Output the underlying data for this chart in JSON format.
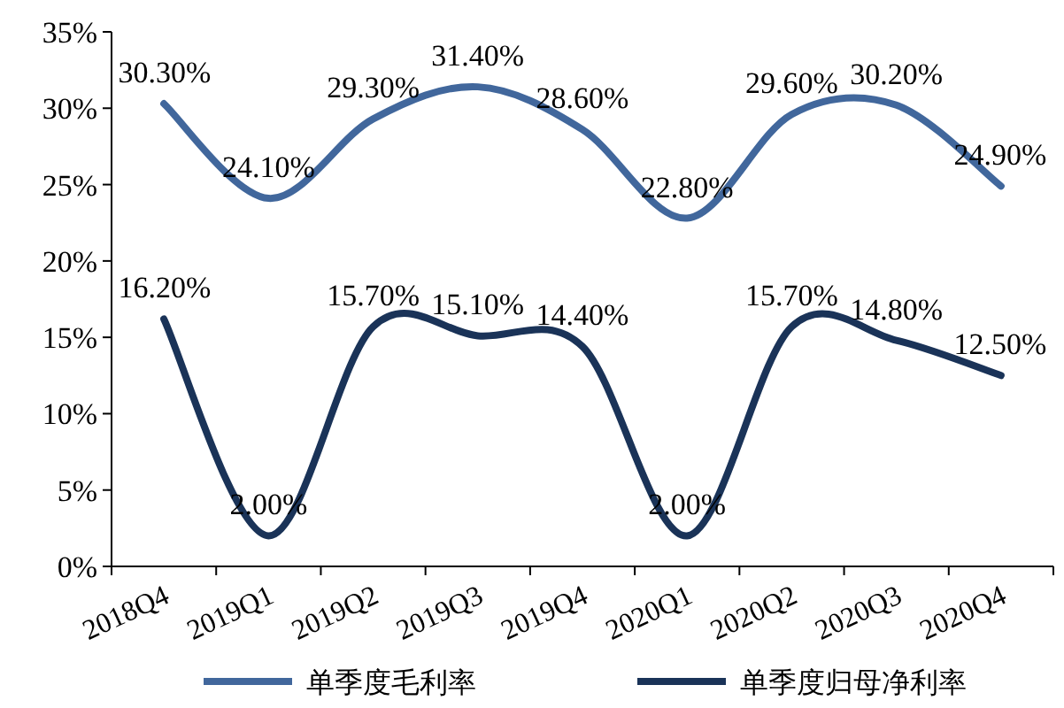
{
  "chart_data": {
    "type": "line",
    "categories": [
      "2018Q4",
      "2019Q1",
      "2019Q2",
      "2019Q3",
      "2019Q4",
      "2020Q1",
      "2020Q2",
      "2020Q3",
      "2020Q4"
    ],
    "series": [
      {
        "name": "单季度毛利率",
        "color": "#41679c",
        "values": [
          30.3,
          24.1,
          29.3,
          31.4,
          28.6,
          22.8,
          29.6,
          30.2,
          24.9
        ],
        "value_labels": [
          "30.30%",
          "24.10%",
          "29.30%",
          "31.40%",
          "28.60%",
          "22.80%",
          "29.60%",
          "30.20%",
          "24.90%"
        ]
      },
      {
        "name": "单季度归母净利率",
        "color": "#1a3358",
        "values": [
          16.2,
          2.0,
          15.7,
          15.1,
          14.4,
          2.0,
          15.7,
          14.8,
          12.5
        ],
        "value_labels": [
          "16.20%",
          "2.00%",
          "15.70%",
          "15.10%",
          "14.40%",
          "2.00%",
          "15.70%",
          "14.80%",
          "12.50%"
        ]
      }
    ],
    "ylim": [
      0,
      35
    ],
    "yticks": [
      {
        "value": 0,
        "label": "0%"
      },
      {
        "value": 5,
        "label": "5%"
      },
      {
        "value": 10,
        "label": "10%"
      },
      {
        "value": 15,
        "label": "15%"
      },
      {
        "value": 20,
        "label": "20%"
      },
      {
        "value": 25,
        "label": "25%"
      },
      {
        "value": 30,
        "label": "30%"
      },
      {
        "value": 35,
        "label": "35%"
      }
    ],
    "legend": "bottom"
  }
}
